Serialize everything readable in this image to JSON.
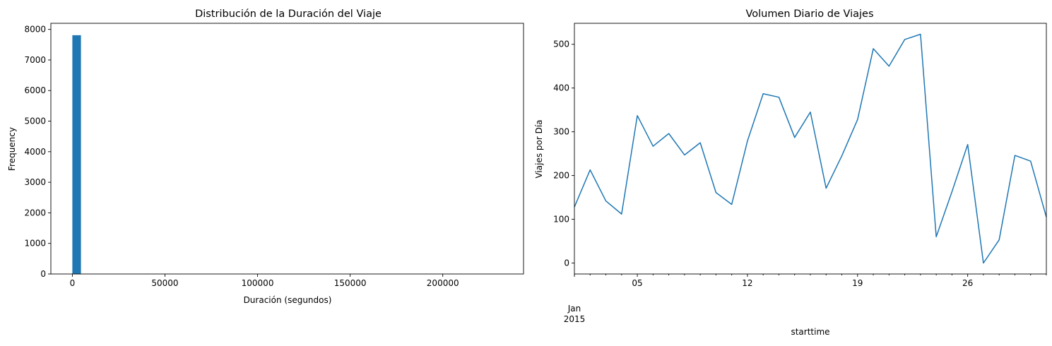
{
  "chart_data": [
    {
      "type": "bar",
      "title": "Distribución de la Duración del Viaje",
      "xlabel": "Duración (segundos)",
      "ylabel": "Frequency",
      "xlim": [
        -11600,
        243600
      ],
      "ylim": [
        0,
        8200
      ],
      "xticks": [
        0,
        50000,
        100000,
        150000,
        200000
      ],
      "xtick_labels": [
        "0",
        "50000",
        "100000",
        "150000",
        "200000"
      ],
      "yticks": [
        0,
        1000,
        2000,
        3000,
        4000,
        5000,
        6000,
        7000,
        8000
      ],
      "ytick_labels": [
        "0",
        "1000",
        "2000",
        "3000",
        "4000",
        "5000",
        "6000",
        "7000",
        "8000"
      ],
      "bins": [
        {
          "x0": 0,
          "x1": 4640,
          "value": 7810
        }
      ],
      "color": "#1f77b4",
      "grid": false
    },
    {
      "type": "line",
      "title": "Volumen Diario de Viajes",
      "xlabel": "starttime",
      "ylabel": "Viajes por Día",
      "x": [
        "2015-01-01",
        "2015-01-02",
        "2015-01-03",
        "2015-01-04",
        "2015-01-05",
        "2015-01-06",
        "2015-01-07",
        "2015-01-08",
        "2015-01-09",
        "2015-01-10",
        "2015-01-11",
        "2015-01-12",
        "2015-01-13",
        "2015-01-14",
        "2015-01-15",
        "2015-01-16",
        "2015-01-17",
        "2015-01-18",
        "2015-01-19",
        "2015-01-20",
        "2015-01-21",
        "2015-01-22",
        "2015-01-23",
        "2015-01-24",
        "2015-01-25",
        "2015-01-26",
        "2015-01-27",
        "2015-01-28",
        "2015-01-29",
        "2015-01-30",
        "2015-01-31"
      ],
      "y": [
        128,
        213,
        142,
        112,
        337,
        267,
        296,
        247,
        275,
        161,
        134,
        279,
        387,
        379,
        287,
        345,
        171,
        245,
        328,
        490,
        450,
        511,
        523,
        60,
        163,
        271,
        0,
        53,
        246,
        233,
        105
      ],
      "ylim": [
        -25,
        548
      ],
      "yticks": [
        0,
        100,
        200,
        300,
        400,
        500
      ],
      "ytick_labels": [
        "0",
        "100",
        "200",
        "300",
        "400",
        "500"
      ],
      "xtick_labels": [
        "05",
        "12",
        "19",
        "26"
      ],
      "xtick_dates": [
        "2015-01-05",
        "2015-01-12",
        "2015-01-19",
        "2015-01-26"
      ],
      "xaxis_secondary_label": [
        "Jan",
        "2015"
      ],
      "color": "#1f77b4",
      "grid": false
    }
  ]
}
